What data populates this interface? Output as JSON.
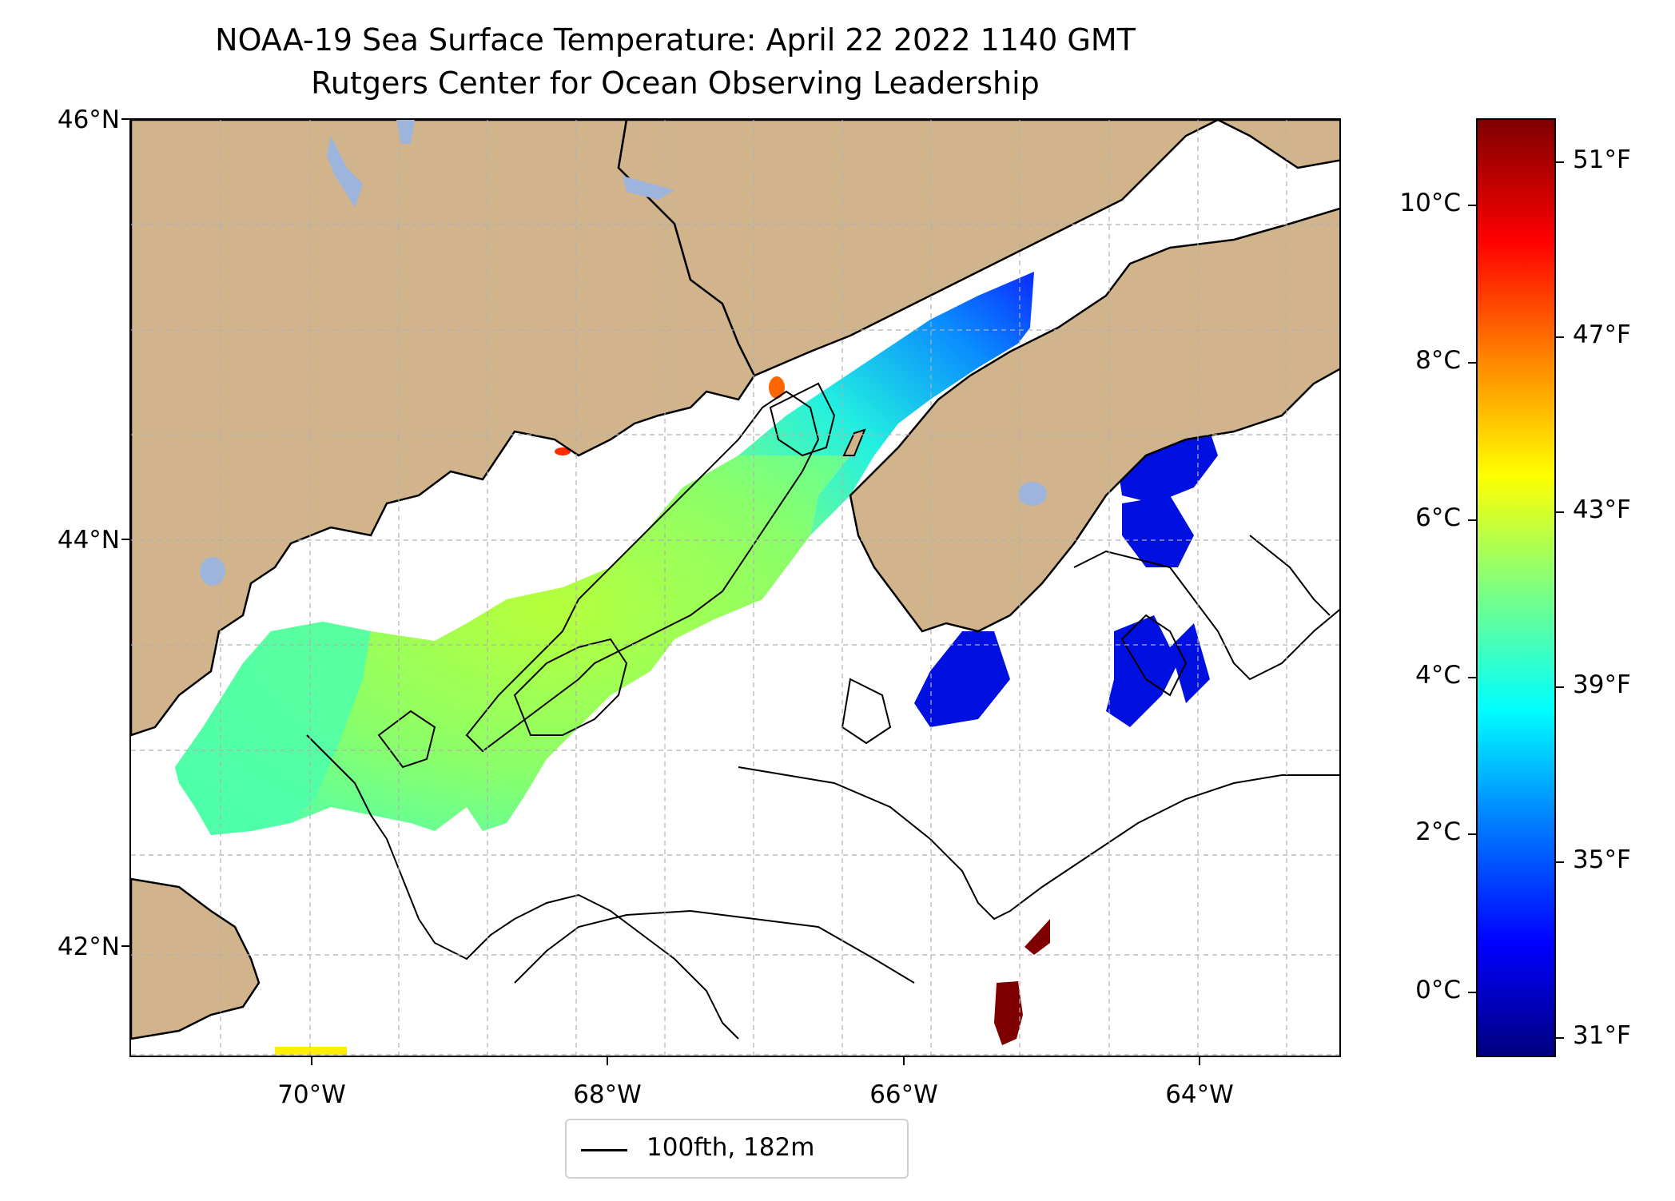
{
  "title": {
    "line1": "NOAA-19 Sea Surface Temperature: April 22 2022 1140 GMT",
    "line2": "Rutgers Center for Ocean Observing Leadership"
  },
  "axes": {
    "lat_labels": [
      "46°N",
      "44°N",
      "42°N"
    ],
    "lon_labels": [
      "70°W",
      "68°W",
      "66°W",
      "64°W"
    ]
  },
  "legend": {
    "label": "100fth, 182m"
  },
  "colorbar": {
    "celsius_labels": [
      "10°C",
      "8°C",
      "6°C",
      "4°C",
      "2°C",
      "0°C"
    ],
    "fahrenheit_labels": [
      "51°F",
      "47°F",
      "43°F",
      "39°F",
      "35°F",
      "31°F"
    ],
    "colormap": "jet"
  },
  "colors": {
    "land": "#d2b48c",
    "lakes": "#9db4dc",
    "coastline": "#000000",
    "grid": "#b0b0b0"
  }
}
